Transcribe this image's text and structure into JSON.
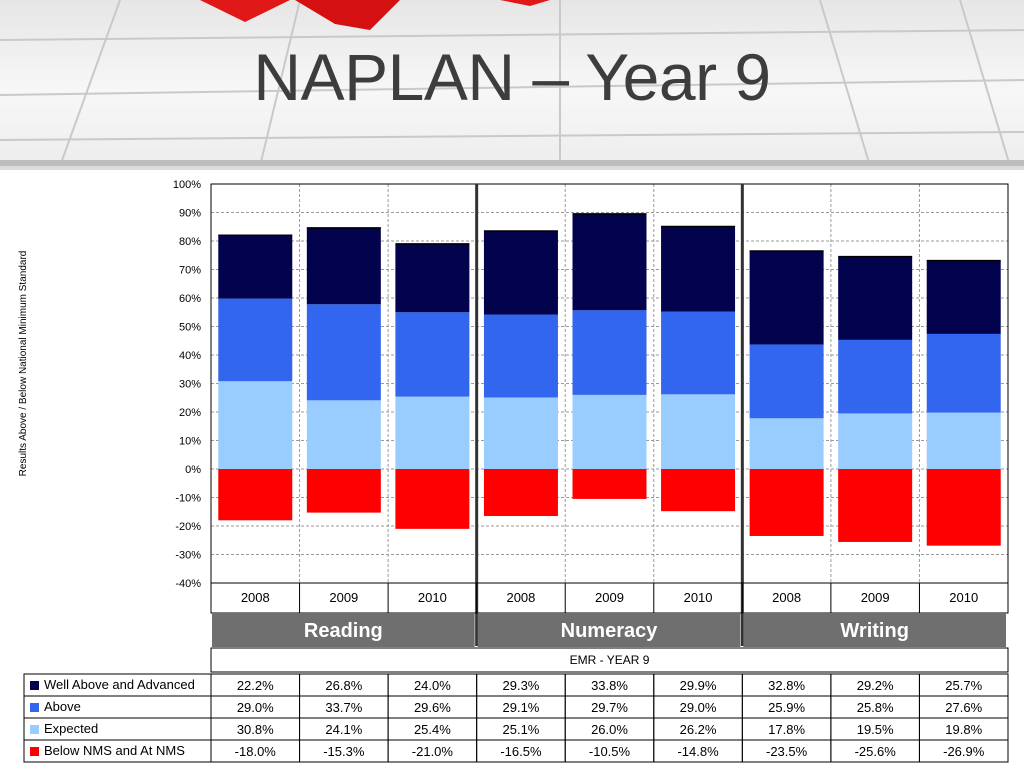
{
  "title": "NAPLAN – Year 9",
  "chart_data": {
    "type": "bar",
    "stacked": true,
    "ylabel": "Results Above / Below National Minimum Standard",
    "ylim": [
      -0.4,
      1.0
    ],
    "yticks": [
      "-40%",
      "-30%",
      "-20%",
      "-10%",
      "0%",
      "10%",
      "20%",
      "30%",
      "40%",
      "50%",
      "60%",
      "70%",
      "80%",
      "90%",
      "100%"
    ],
    "grid": true,
    "categories": [
      "2008",
      "2009",
      "2010",
      "2008",
      "2009",
      "2010",
      "2008",
      "2009",
      "2010"
    ],
    "groups": [
      "Reading",
      "Numeracy",
      "Writing"
    ],
    "table_header": "EMR - YEAR 9",
    "series": [
      {
        "name": "Well Above and Advanced",
        "color": "#03034d",
        "values": [
          0.222,
          0.268,
          0.24,
          0.293,
          0.338,
          0.299,
          0.328,
          0.292,
          0.257
        ],
        "labels": [
          "22.2%",
          "26.8%",
          "24.0%",
          "29.3%",
          "33.8%",
          "29.9%",
          "32.8%",
          "29.2%",
          "25.7%"
        ]
      },
      {
        "name": "Above",
        "color": "#3366ee",
        "values": [
          0.29,
          0.337,
          0.296,
          0.291,
          0.297,
          0.29,
          0.259,
          0.258,
          0.276
        ],
        "labels": [
          "29.0%",
          "33.7%",
          "29.6%",
          "29.1%",
          "29.7%",
          "29.0%",
          "25.9%",
          "25.8%",
          "27.6%"
        ]
      },
      {
        "name": "Expected",
        "color": "#99ccff",
        "values": [
          0.308,
          0.241,
          0.254,
          0.251,
          0.26,
          0.262,
          0.178,
          0.195,
          0.198
        ],
        "labels": [
          "30.8%",
          "24.1%",
          "25.4%",
          "25.1%",
          "26.0%",
          "26.2%",
          "17.8%",
          "19.5%",
          "19.8%"
        ]
      },
      {
        "name": "Below NMS and At NMS",
        "color": "#ff0000",
        "values": [
          -0.18,
          -0.153,
          -0.21,
          -0.165,
          -0.105,
          -0.148,
          -0.235,
          -0.256,
          -0.269
        ],
        "labels": [
          "-18.0%",
          "-15.3%",
          "-21.0%",
          "-16.5%",
          "-10.5%",
          "-14.8%",
          "-23.5%",
          "-25.6%",
          "-26.9%"
        ]
      }
    ]
  }
}
